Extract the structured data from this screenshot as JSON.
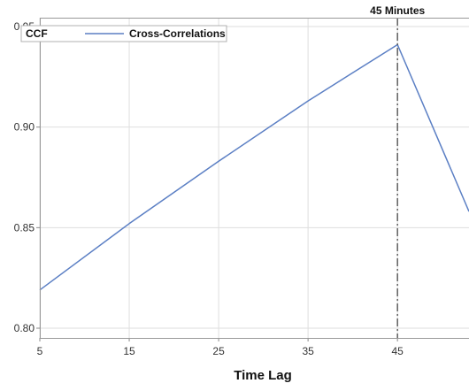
{
  "chart_data": {
    "type": "line",
    "xlabel": "Time Lag",
    "ylabel": "",
    "xlim": [
      5,
      53
    ],
    "ylim": [
      0.8,
      0.95
    ],
    "xticks": [
      5,
      15,
      25,
      35,
      45
    ],
    "yticks": [
      0.8,
      0.85,
      0.9,
      0.95
    ],
    "ytick_labels": [
      "0.80",
      "0.85",
      "0.90",
      "0.95"
    ],
    "grid": true,
    "legend": {
      "title": "CCF",
      "placement": "top-left",
      "entries": [
        "Cross-Correlations"
      ]
    },
    "series": [
      {
        "name": "Cross-Correlations",
        "color": "#5b7fc4",
        "x": [
          5,
          15,
          25,
          35,
          40,
          45,
          53
        ],
        "y": [
          0.819,
          0.852,
          0.883,
          0.913,
          0.927,
          0.941,
          0.858
        ]
      }
    ],
    "reference_line": {
      "x": 45,
      "label": "45 Minutes",
      "color": "#555555"
    }
  }
}
